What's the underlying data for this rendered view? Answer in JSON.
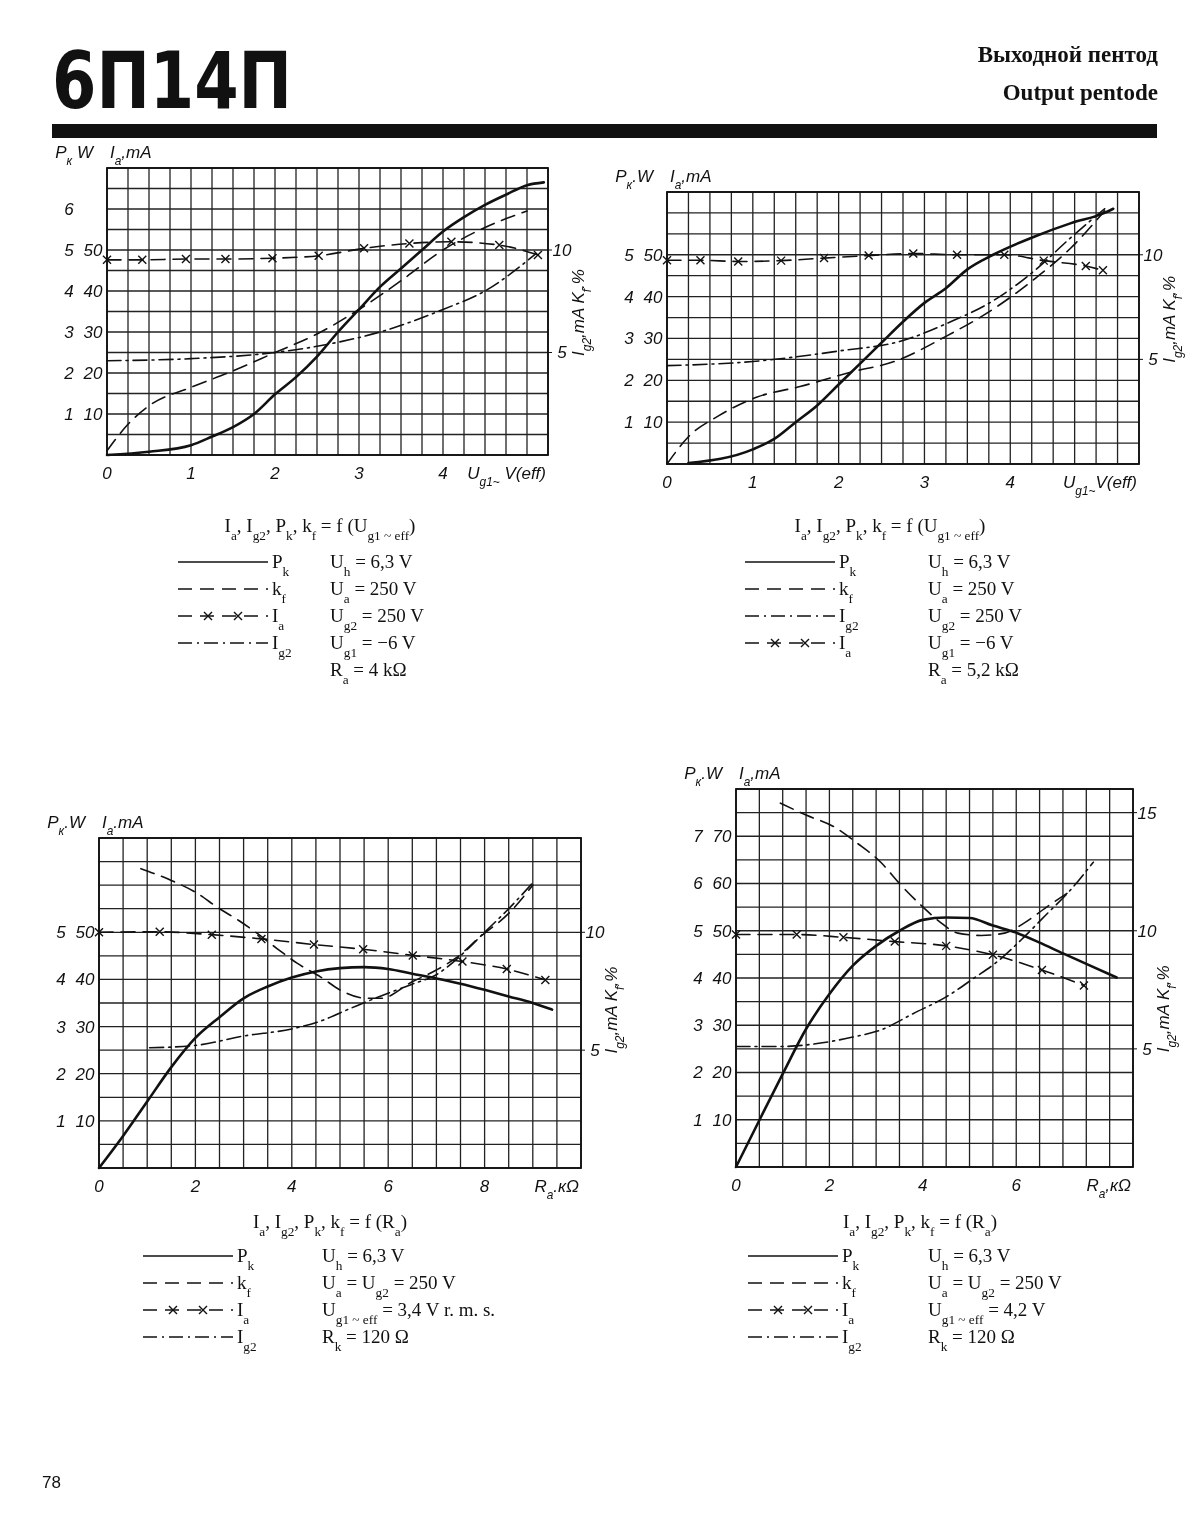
{
  "chart_data": [
    {
      "type": "line",
      "title": "6П14П",
      "xlabel": "U$_{g1~}$ V(eff)",
      "ylabel": "P$_{к}$ W",
      "y2label": "I$_{a}$,mA",
      "y3label": "I$_{g2}$,mA K$_{f}$.%",
      "xlim": [
        0,
        5.25
      ],
      "ylim": [
        0,
        7
      ],
      "y2lim": [
        0,
        70
      ],
      "y3lim": [
        0,
        14
      ],
      "xticks": [
        0,
        {
          "value": 0.25,
          "label": null
        },
        {
          "value": 0.5,
          "label": null
        },
        {
          "value": 0.75,
          "label": null
        },
        1,
        {
          "value": 1.25,
          "label": null
        },
        {
          "value": 1.5,
          "label": null
        },
        {
          "value": 1.75,
          "label": null
        },
        2,
        {
          "value": 2.25,
          "label": null
        },
        {
          "value": 2.5,
          "label": null
        },
        {
          "value": 2.75,
          "label": null
        },
        3,
        {
          "value": 3.25,
          "label": null
        },
        {
          "value": 3.5,
          "label": null
        },
        {
          "value": 3.75,
          "label": null
        },
        4,
        {
          "value": 4.25,
          "label": null
        },
        {
          "value": 4.5,
          "label": null
        },
        {
          "value": 4.75,
          "label": null
        },
        {
          "value": 5,
          "label": null
        },
        {
          "value": 5.25,
          "label": null
        }
      ],
      "yticks": [
        {
          "value": 0,
          "label": null
        },
        {
          "value": 0.5,
          "label": null
        },
        1,
        {
          "value": 1.5,
          "label": null
        },
        2,
        {
          "value": 2.5,
          "label": null
        },
        3,
        {
          "value": 3.5,
          "label": null
        },
        4,
        {
          "value": 4.5,
          "label": null
        },
        5,
        {
          "value": 5.5,
          "label": null
        },
        6,
        {
          "value": 6.5,
          "label": null
        },
        {
          "value": 7,
          "label": null
        }
      ],
      "y2ticks": [
        10,
        20,
        30,
        40,
        50
      ],
      "y3ticks": [
        5,
        10
      ],
      "grid": true,
      "legend": "bottom",
      "series": [
        {
          "name": "P$_{k}$",
          "color": "#111111",
          "line_style": "solid",
          "x": [
            0,
            0.5,
            1,
            1.25,
            1.5,
            1.75,
            2,
            2.25,
            2.5,
            2.75,
            3,
            3.25,
            3.5,
            3.75,
            4,
            4.25,
            4.5,
            4.75,
            5,
            5.2
          ],
          "values": [
            0,
            0.08,
            0.24,
            0.45,
            0.68,
            1.0,
            1.48,
            1.9,
            2.4,
            3.0,
            3.55,
            4.1,
            4.55,
            5.0,
            5.45,
            5.8,
            6.1,
            6.35,
            6.58,
            6.65
          ]
        },
        {
          "name": "k$_{f}$",
          "color": "#111111",
          "line_style": "dashed",
          "axis": "y3",
          "x": [
            0,
            0.25,
            0.5,
            1,
            1.5,
            2,
            2.5,
            3,
            3.5,
            4,
            4.5,
            5
          ],
          "values": [
            0.2,
            1.5,
            2.4,
            3.3,
            4.1,
            5.0,
            5.9,
            7.1,
            8.5,
            10.0,
            11.1,
            11.9
          ]
        },
        {
          "name": "I$_{a}$",
          "color": "#111111",
          "line_style": "dashed",
          "marker": "cross",
          "axis": "y2",
          "x": [
            0,
            0.42,
            0.94,
            1.41,
            1.97,
            2.52,
            3.06,
            3.6,
            4.1,
            4.67,
            5.13
          ],
          "values": [
            47.6,
            47.6,
            47.8,
            47.8,
            48,
            48.6,
            50.4,
            51.6,
            52,
            51.2,
            48.8
          ]
        },
        {
          "name": "I$_{g2}$",
          "color": "#111111",
          "line_style": "dashdot",
          "axis": "y3",
          "x": [
            0,
            1,
            2,
            2.75,
            3.25,
            4,
            4.5,
            5.1
          ],
          "values": [
            4.6,
            4.7,
            5.0,
            5.5,
            6.0,
            7.1,
            8.0,
            9.8
          ]
        }
      ],
      "annotations": [
        "I$_{a}$,  I$_{g2}$,  P$_{k}$,  k$_{f}$ = f (U$_{g1 ~ eff}$)",
        "U$_{h}$ = 6,3 V",
        "U$_{a}$ = 250 V",
        "U$_{g2}$ = 250 V",
        "U$_{g1}$ = −6 V",
        "R$_{a}$ = 4 kΩ"
      ]
    },
    {
      "type": "line",
      "subtitle": "Выходной пентод\nOutput pentode",
      "xlabel": "U$_{g1~}$V(eff)",
      "ylabel": "P$_{к}$.W",
      "y2label": "I$_{a}$,mA",
      "y3label": "I$_{g2}$,mA K$_{f}$,%",
      "xlim": [
        0,
        5.5
      ],
      "ylim": [
        0,
        6.5
      ],
      "y2lim": [
        0,
        65
      ],
      "y3lim": [
        0,
        13
      ],
      "xticks": [
        0,
        {
          "value": 0.25,
          "label": null
        },
        {
          "value": 0.5,
          "label": null
        },
        {
          "value": 0.75,
          "label": null
        },
        1,
        {
          "value": 1.25,
          "label": null
        },
        {
          "value": 1.5,
          "label": null
        },
        {
          "value": 1.75,
          "label": null
        },
        2,
        {
          "value": 2.25,
          "label": null
        },
        {
          "value": 2.5,
          "label": null
        },
        {
          "value": 2.75,
          "label": null
        },
        3,
        {
          "value": 3.25,
          "label": null
        },
        {
          "value": 3.5,
          "label": null
        },
        {
          "value": 3.75,
          "label": null
        },
        4,
        {
          "value": 4.25,
          "label": null
        },
        {
          "value": 4.5,
          "label": null
        },
        {
          "value": 4.75,
          "label": null
        },
        {
          "value": 5,
          "label": null
        },
        {
          "value": 5.25,
          "label": null
        },
        {
          "value": 5.5,
          "label": null
        }
      ],
      "yticks": [
        {
          "value": 0,
          "label": null
        },
        {
          "value": 0.5,
          "label": null
        },
        1,
        {
          "value": 1.5,
          "label": null
        },
        2,
        {
          "value": 2.5,
          "label": null
        },
        3,
        {
          "value": 3.5,
          "label": null
        },
        4,
        {
          "value": 4.5,
          "label": null
        },
        5,
        {
          "value": 5.5,
          "label": null
        },
        {
          "value": 6,
          "label": null
        },
        {
          "value": 6.5,
          "label": null
        }
      ],
      "y2ticks": [
        10,
        20,
        30,
        40,
        50
      ],
      "y3ticks": [
        5,
        10
      ],
      "grid": true,
      "legend": "bottom",
      "series": [
        {
          "name": "P$_{k}$",
          "color": "#111111",
          "line_style": "solid",
          "x": [
            0.25,
            1,
            1.25,
            1.5,
            1.75,
            2,
            2.25,
            2.5,
            2.75,
            3,
            3.25,
            3.5,
            3.8,
            4.3,
            4.7,
            5.1,
            5.2
          ],
          "values": [
            0.02,
            0.35,
            0.6,
            1.0,
            1.4,
            1.9,
            2.4,
            2.9,
            3.4,
            3.85,
            4.2,
            4.65,
            5.0,
            5.45,
            5.75,
            6.0,
            6.1
          ]
        },
        {
          "name": "k$_{f}$",
          "color": "#111111",
          "line_style": "dashed",
          "axis": "y3",
          "x": [
            0,
            0.25,
            0.6,
            1.05,
            1.55,
            2.15,
            2.65,
            3.25,
            3.8,
            4.3,
            4.7,
            5.1
          ],
          "values": [
            0,
            1.3,
            2.3,
            3.2,
            3.7,
            4.4,
            4.9,
            6.1,
            7.4,
            8.9,
            10.3,
            12.1
          ]
        },
        {
          "name": "I$_{g2}$",
          "color": "#111111",
          "line_style": "dashdot",
          "axis": "y3",
          "x": [
            0,
            1,
            2,
            2.75,
            3.25,
            3.8,
            4.3,
            4.7,
            5.1
          ],
          "values": [
            4.7,
            4.9,
            5.4,
            5.9,
            6.7,
            7.8,
            9.3,
            10.8,
            12.2
          ]
        },
        {
          "name": "I$_{a}$",
          "color": "#111111",
          "line_style": "dashed",
          "marker": "cross",
          "axis": "y2",
          "x": [
            0,
            0.39,
            0.83,
            1.33,
            1.83,
            2.35,
            2.87,
            3.38,
            3.93,
            4.39,
            4.88,
            5.08
          ],
          "values": [
            48.7,
            48.7,
            48.4,
            48.6,
            49.2,
            49.8,
            50.3,
            50,
            50,
            48.6,
            47.3,
            46.3
          ]
        }
      ],
      "annotations": [
        "I$_{a}$,  I$_{g2}$,  P$_{k}$,  k$_{f}$ = f (U$_{g1 ~ eff}$)",
        "U$_{h}$ = 6,3 V",
        "U$_{a}$ = 250 V",
        "U$_{g2}$ = 250 V",
        "U$_{g1}$ = −6 V",
        "R$_{a}$ = 5,2 kΩ"
      ]
    },
    {
      "type": "line",
      "xlabel": "R$_{a}$.кΩ",
      "ylabel": "P$_{к}$.W",
      "y2label": "I$_{a}$.mA",
      "y3label": "I$_{g2}$,mA K$_{f}$,%",
      "xlim": [
        0,
        10
      ],
      "ylim": [
        0,
        7
      ],
      "y2lim": [
        0,
        70
      ],
      "y3lim": [
        0,
        14
      ],
      "xticks": [
        0,
        {
          "value": 0.5,
          "label": null
        },
        {
          "value": 1,
          "label": null
        },
        {
          "value": 1.5,
          "label": null
        },
        2,
        {
          "value": 2.5,
          "label": null
        },
        {
          "value": 3,
          "label": null
        },
        {
          "value": 3.5,
          "label": null
        },
        4,
        {
          "value": 4.5,
          "label": null
        },
        {
          "value": 5,
          "label": null
        },
        {
          "value": 5.5,
          "label": null
        },
        6,
        {
          "value": 6.5,
          "label": null
        },
        {
          "value": 7,
          "label": null
        },
        {
          "value": 7.5,
          "label": null
        },
        8,
        {
          "value": 8.5,
          "label": null
        },
        {
          "value": 9,
          "label": null
        },
        {
          "value": 9.5,
          "label": null
        },
        {
          "value": 10,
          "label": null
        }
      ],
      "yticks": [
        {
          "value": 0,
          "label": null
        },
        {
          "value": 0.5,
          "label": null
        },
        1,
        {
          "value": 1.5,
          "label": null
        },
        2,
        {
          "value": 2.5,
          "label": null
        },
        3,
        {
          "value": 3.5,
          "label": null
        },
        4,
        {
          "value": 4.5,
          "label": null
        },
        5,
        {
          "value": 5.5,
          "label": null
        },
        {
          "value": 6,
          "label": null
        },
        {
          "value": 6.5,
          "label": null
        },
        {
          "value": 7,
          "label": null
        }
      ],
      "y2ticks": [
        10,
        20,
        30,
        40,
        50
      ],
      "y3ticks": [
        5,
        10
      ],
      "grid": true,
      "legend": "bottom",
      "series": [
        {
          "name": "P$_{k}$",
          "color": "#111111",
          "line_style": "solid",
          "x": [
            0,
            0.5,
            1,
            1.5,
            2,
            2.5,
            3,
            3.5,
            4,
            4.5,
            5,
            5.5,
            6,
            6.5,
            7,
            7.5,
            8,
            8.5,
            9,
            9.4
          ],
          "values": [
            0,
            0.68,
            1.41,
            2.14,
            2.76,
            3.2,
            3.6,
            3.85,
            4.04,
            4.17,
            4.24,
            4.26,
            4.22,
            4.12,
            4.02,
            3.91,
            3.78,
            3.64,
            3.5,
            3.36
          ]
        },
        {
          "name": "k$_{f}$",
          "color": "#111111",
          "line_style": "dashed",
          "axis": "y3",
          "x": [
            0.87,
            1.5,
            2,
            2.5,
            2.9,
            3.25,
            3.7,
            4.1,
            4.6,
            5.05,
            5.55,
            5.85,
            6.5,
            7,
            7.4,
            7.9,
            8.5,
            9
          ],
          "values": [
            12.7,
            12.2,
            11.7,
            11.0,
            10.5,
            10.0,
            9.3,
            8.7,
            8.1,
            7.5,
            7.2,
            7.2,
            7.9,
            8.4,
            8.9,
            9.8,
            10.8,
            12.0
          ]
        },
        {
          "name": "I$_{a}$",
          "color": "#111111",
          "line_style": "dashed",
          "marker": "cross",
          "axis": "y2",
          "x": [
            0,
            1.26,
            2.34,
            3.37,
            4.46,
            5.48,
            6.51,
            7.54,
            8.46,
            9.26
          ],
          "values": [
            50,
            50.1,
            49.5,
            48.6,
            47.4,
            46.4,
            45.1,
            43.8,
            42.2,
            39.9
          ]
        },
        {
          "name": "I$_{g2}$",
          "color": "#111111",
          "line_style": "dashdot",
          "axis": "y3",
          "x": [
            1.05,
            2,
            3,
            4,
            4.55,
            5.25,
            5.85,
            6.5,
            7,
            7.55,
            8,
            8.5,
            9
          ],
          "values": [
            5.1,
            5.2,
            5.6,
            5.9,
            6.2,
            6.8,
            7.3,
            7.8,
            8.2,
            9.1,
            10.0,
            11.0,
            12.1
          ]
        }
      ],
      "annotations": [
        "I$_{a}$,  I$_{g2}$,  P$_{k}$,  k$_{f}$ = f (R$_{a}$)",
        "U$_{h}$ = 6,3 V",
        "U$_{a}$ = U$_{g2}$ = 250 V",
        "U$_{g1 ~ eff}$ = 3,4 V  r. m. s.",
        "R$_{k}$ = 120 Ω"
      ]
    },
    {
      "type": "line",
      "xlabel": "R$_{a}$,кΩ",
      "ylabel": "P$_{к}$.W",
      "y2label": "I$_{a}$,mA",
      "y3label": "I$_{g2}$,mA K$_{f}$,%",
      "xlim": [
        0,
        8.5
      ],
      "ylim": [
        0,
        8
      ],
      "y2lim": [
        0,
        80
      ],
      "y3lim": [
        0,
        16
      ],
      "xticks": [
        0,
        {
          "value": 0.5,
          "label": null
        },
        {
          "value": 1,
          "label": null
        },
        {
          "value": 1.5,
          "label": null
        },
        2,
        {
          "value": 2.5,
          "label": null
        },
        {
          "value": 3,
          "label": null
        },
        {
          "value": 3.5,
          "label": null
        },
        4,
        {
          "value": 4.5,
          "label": null
        },
        {
          "value": 5,
          "label": null
        },
        {
          "value": 5.5,
          "label": null
        },
        6,
        {
          "value": 6.5,
          "label": null
        },
        {
          "value": 7,
          "label": null
        },
        {
          "value": 7.5,
          "label": null
        },
        {
          "value": 8,
          "label": null
        },
        {
          "value": 8.5,
          "label": null
        }
      ],
      "yticks": [
        {
          "value": 0,
          "label": null
        },
        {
          "value": 0.5,
          "label": null
        },
        1,
        {
          "value": 1.5,
          "label": null
        },
        2,
        {
          "value": 2.5,
          "label": null
        },
        3,
        {
          "value": 3.5,
          "label": null
        },
        4,
        {
          "value": 4.5,
          "label": null
        },
        5,
        {
          "value": 5.5,
          "label": null
        },
        6,
        {
          "value": 6.5,
          "label": null
        },
        7,
        {
          "value": 7.5,
          "label": null
        },
        {
          "value": 8,
          "label": null
        }
      ],
      "y2ticks": [
        10,
        20,
        30,
        40,
        50,
        60,
        70
      ],
      "y3ticks": [
        5,
        10,
        15
      ],
      "grid": true,
      "legend": "bottom",
      "series": [
        {
          "name": "P$_{k}$",
          "color": "#111111",
          "line_style": "solid",
          "x": [
            0,
            0.5,
            1,
            1.5,
            2,
            2.5,
            3,
            3.5,
            4,
            4.5,
            5,
            5.5,
            6,
            6.5,
            7,
            7.5,
            8.15
          ],
          "values": [
            0,
            0.99,
            1.97,
            2.92,
            3.66,
            4.26,
            4.68,
            5.0,
            5.23,
            5.28,
            5.27,
            5.11,
            4.96,
            4.75,
            4.52,
            4.3,
            4.01
          ]
        },
        {
          "name": "k$_{f}$",
          "color": "#111111",
          "line_style": "dashed",
          "axis": "y3",
          "x": [
            0.95,
            1.5,
            2.1,
            2.6,
            3.1,
            3.5,
            3.95,
            4.35,
            4.75,
            5.25,
            5.75,
            6.15,
            6.65,
            7.1
          ],
          "values": [
            15.4,
            14.9,
            14.4,
            13.7,
            12.9,
            12.0,
            11.1,
            10.4,
            9.9,
            9.8,
            9.9,
            10.3,
            11.0,
            11.6
          ]
        },
        {
          "name": "I$_{a}$",
          "color": "#111111",
          "line_style": "dashed",
          "marker": "cross",
          "axis": "y2",
          "x": [
            0,
            1.3,
            2.3,
            3.4,
            4.5,
            5.5,
            6.55,
            7.45
          ],
          "values": [
            49.2,
            49.2,
            48.6,
            47.7,
            46.8,
            44.9,
            41.7,
            38.4
          ]
        },
        {
          "name": "I$_{g2}$",
          "color": "#111111",
          "line_style": "dashdot",
          "axis": "y3",
          "x": [
            0,
            0.95,
            1.65,
            2.5,
            3.1,
            3.8,
            4.5,
            5.1,
            5.6,
            6.15,
            6.65,
            7.15,
            7.65
          ],
          "values": [
            5.1,
            5.1,
            5.2,
            5.5,
            5.8,
            6.5,
            7.2,
            8.0,
            8.7,
            9.7,
            10.7,
            11.7,
            12.9
          ]
        }
      ],
      "annotations": [
        "I$_{a}$,  I$_{g2}$,  P$_{k}$,  k$_{f}$ = f (R$_{a}$)",
        "U$_{h}$ = 6,3 V",
        "U$_{a}$ = U$_{g2}$ = 250 V",
        "U$_{g1 ~ eff}$ = 4,2 V",
        "R$_{k}$ = 120 Ω",
        "78"
      ]
    }
  ]
}
